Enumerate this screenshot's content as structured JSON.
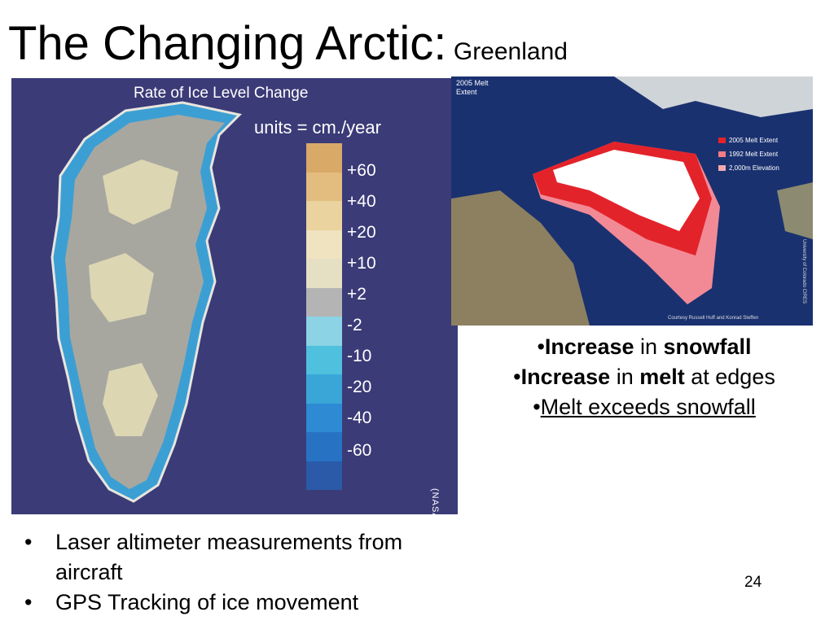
{
  "slide": {
    "title": "The Changing Arctic:",
    "subtitle": "Greenland",
    "page_number": "24"
  },
  "ice_map": {
    "heading": "Rate of Ice Level Change",
    "units": "units = cm./year",
    "scale_ticks": [
      "+60",
      "+40",
      "+20",
      "+10",
      "+2",
      "-2",
      "-10",
      "-20",
      "-40",
      "-60"
    ],
    "scale_colors": [
      "#d9a968",
      "#e3bd80",
      "#ead39e",
      "#f0e3bf",
      "#e5e0c3",
      "#b4b4b4",
      "#8bd3e5",
      "#4fc0de",
      "#3aa6d8",
      "#2d8ad3",
      "#2872c4",
      "#2a5aa8"
    ],
    "credit": "(NASA)"
  },
  "satellite": {
    "label": "2005 Melt Extent",
    "legend": [
      {
        "label": "2005 Melt Extent",
        "color": "#e3232a"
      },
      {
        "label": "1992 Melt Extent",
        "color": "#f27b86"
      },
      {
        "label": "2,000m Elevation",
        "color": "#f5a9b0"
      }
    ],
    "credit": "Courtesy Russell Huff and Konrad Steffen",
    "side_credit": "University of Colorado CIRES"
  },
  "right_bullets": [
    {
      "parts": [
        {
          "t": "•",
          "s": ""
        },
        {
          "t": "Increase",
          "s": "b"
        },
        {
          "t": " in ",
          "s": ""
        },
        {
          "t": "snowfall",
          "s": "b"
        }
      ]
    },
    {
      "parts": [
        {
          "t": "•",
          "s": ""
        },
        {
          "t": "Increase",
          "s": "b"
        },
        {
          "t": " in ",
          "s": ""
        },
        {
          "t": "melt",
          "s": "b"
        },
        {
          "t": " at edges",
          "s": ""
        }
      ]
    },
    {
      "parts": [
        {
          "t": "•",
          "s": ""
        },
        {
          "t": "Melt exceeds snowfall",
          "s": "u"
        }
      ]
    }
  ],
  "bottom_bullets": [
    "Laser altimeter measurements from aircraft",
    "GPS Tracking of ice movement"
  ]
}
